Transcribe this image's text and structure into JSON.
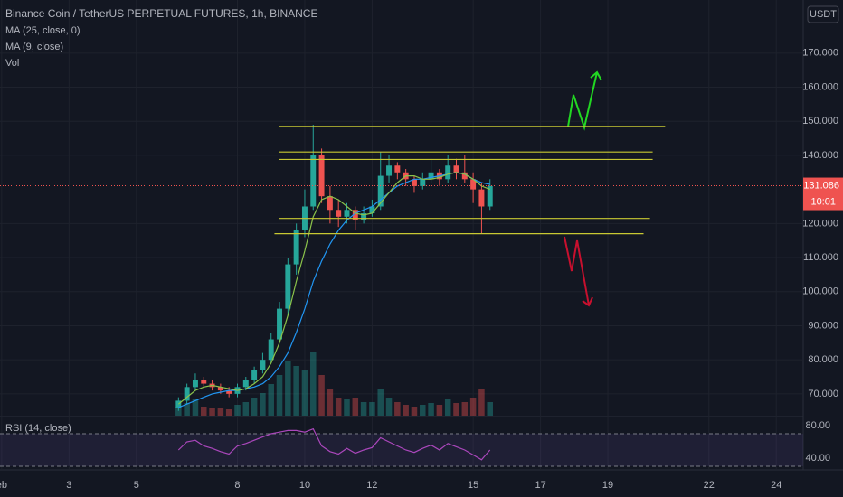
{
  "chart_data": {
    "type": "candlestick",
    "title": "Binance Coin / TetherUS PERPETUAL FUTURES, 1h, BINANCE",
    "currency": "USDT",
    "x": [
      6.25,
      6.5,
      6.75,
      7.0,
      7.25,
      7.5,
      7.75,
      8.0,
      8.25,
      8.5,
      8.75,
      9.0,
      9.25,
      9.5,
      9.75,
      10.0,
      10.25,
      10.5,
      10.75,
      11.0,
      11.25,
      11.5,
      11.75,
      12.0,
      12.25,
      12.5,
      12.75,
      13.0,
      13.25,
      13.5,
      13.75,
      14.0,
      14.25,
      14.5,
      14.75,
      15.0,
      15.25,
      15.5
    ],
    "open": [
      66,
      68,
      72,
      74,
      73,
      72,
      71,
      70,
      72,
      74,
      77,
      80,
      86,
      95,
      108,
      118,
      125,
      140,
      128,
      124,
      122,
      124,
      121,
      123,
      125,
      134,
      137,
      135,
      133,
      131,
      133,
      135,
      133,
      137,
      135,
      133,
      130,
      125
    ],
    "high": [
      69,
      73,
      76,
      75,
      74,
      73,
      72,
      73,
      75,
      78,
      82,
      88,
      97,
      110,
      120,
      130,
      149,
      142,
      131,
      127,
      126,
      125,
      125,
      127,
      141,
      140,
      138,
      136,
      134,
      135,
      139,
      136,
      140,
      139,
      140,
      135,
      132,
      133
    ],
    "low": [
      65,
      67,
      71,
      72,
      71,
      70,
      69,
      69,
      71,
      73,
      76,
      79,
      85,
      93,
      105,
      116,
      124,
      126,
      120,
      119,
      120,
      118,
      120,
      122,
      124,
      132,
      133,
      131,
      129,
      130,
      132,
      131,
      132,
      133,
      132,
      126,
      117,
      124
    ],
    "close": [
      68,
      72,
      74,
      73,
      72,
      71,
      70,
      72,
      74,
      77,
      80,
      86,
      95,
      108,
      118,
      125,
      140,
      128,
      124,
      122,
      124,
      121,
      123,
      125,
      134,
      137,
      135,
      133,
      131,
      133,
      135,
      133,
      137,
      135,
      133,
      130,
      125,
      131
    ],
    "volume_name": "Vol",
    "volume": [
      10,
      14,
      18,
      10,
      8,
      8,
      7,
      12,
      15,
      20,
      25,
      35,
      45,
      60,
      55,
      50,
      70,
      45,
      30,
      20,
      18,
      20,
      15,
      15,
      30,
      20,
      15,
      12,
      10,
      12,
      14,
      12,
      18,
      14,
      15,
      20,
      30,
      15
    ],
    "vlim": [
      0,
      100
    ],
    "up_color": "#26a69a",
    "down_color": "#ef5350",
    "series": [
      {
        "name": "MA (25, close, 0)",
        "color": "#2196f3",
        "values": [
          66,
          67,
          68,
          69,
          70,
          70.5,
          71,
          71,
          71.5,
          72,
          73,
          75,
          78,
          82,
          88,
          95,
          103,
          109,
          114,
          118,
          121,
          123,
          124,
          125,
          127,
          129,
          131,
          132,
          133,
          133,
          133.5,
          134,
          134.5,
          135,
          134.5,
          133,
          132,
          131.5
        ]
      },
      {
        "name": "MA (9, close)",
        "color": "#8bc34a",
        "values": [
          67,
          69,
          71,
          72,
          72.5,
          72,
          71.5,
          71,
          71.5,
          73,
          75,
          79,
          85,
          93,
          103,
          112,
          122,
          127,
          128,
          127,
          125,
          123,
          122.5,
          123,
          126,
          129,
          132,
          134,
          134,
          133,
          133,
          133.5,
          134.5,
          135,
          134.5,
          133,
          131,
          130
        ]
      }
    ],
    "xlim": [
      0.95,
      24.8
    ],
    "xticks": [
      {
        "value": 1,
        "label": "eb"
      },
      3,
      5,
      8,
      10,
      12,
      15,
      17,
      19,
      22,
      24
    ],
    "ylim": [
      63.6,
      185.6
    ],
    "yticks": [
      {
        "value": 70,
        "label": "70.000"
      },
      {
        "value": 80,
        "label": "80.000"
      },
      {
        "value": 90,
        "label": "90.000"
      },
      {
        "value": 100,
        "label": "100.000"
      },
      {
        "value": 110,
        "label": "110.000"
      },
      {
        "value": 120,
        "label": "120.000"
      },
      {
        "value": 140,
        "label": "140.000"
      },
      {
        "value": 150,
        "label": "150.000"
      },
      {
        "value": 160,
        "label": "160.000"
      },
      {
        "value": 170,
        "label": "170.000"
      }
    ],
    "grid": true,
    "level_color": "#c8c832",
    "levels": [
      {
        "value": 148.5,
        "x": [
          9.23,
          20.7
        ]
      },
      {
        "value": 141,
        "x": [
          9.23,
          20.33
        ]
      },
      {
        "value": 138.8,
        "x": [
          9.23,
          20.33
        ]
      },
      {
        "value": 121.5,
        "x": [
          9.23,
          20.25
        ]
      },
      {
        "value": 117,
        "x": [
          9.1,
          20.06
        ]
      }
    ],
    "last_price": 131.086,
    "countdown": "10:01",
    "rsi": {
      "name": "RSI (14, close)",
      "color": "#ab47bc",
      "values": [
        50,
        60,
        62,
        55,
        52,
        48,
        45,
        55,
        58,
        62,
        66,
        70,
        72,
        74,
        74,
        72,
        76,
        55,
        48,
        45,
        52,
        46,
        50,
        53,
        65,
        60,
        55,
        50,
        47,
        52,
        56,
        50,
        58,
        54,
        50,
        44,
        38,
        50
      ],
      "ylim": [
        25.6,
        90
      ],
      "yticks": [
        {
          "value": 80,
          "label": "80.00"
        },
        {
          "value": 40,
          "label": "40.00"
        }
      ],
      "bands": [
        70,
        30
      ]
    }
  }
}
